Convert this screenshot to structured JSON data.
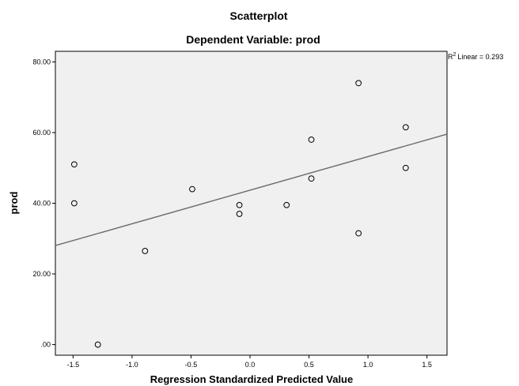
{
  "chart_data": {
    "type": "scatter",
    "title": "Scatterplot",
    "subtitle": "Dependent Variable: prod",
    "xlabel": "Regression Standardized Predicted Value",
    "ylabel": "prod",
    "xlim": [
      -1.65,
      1.67
    ],
    "ylim": [
      -3,
      83
    ],
    "x_ticks": [
      -1.5,
      -1.0,
      -0.5,
      0.0,
      0.5,
      1.0,
      1.5
    ],
    "x_tick_labels": [
      "-1.5",
      "-1.0",
      "-0.5",
      "0.0",
      "0.5",
      "1.0",
      "1.5"
    ],
    "y_ticks": [
      0,
      20,
      40,
      60,
      80
    ],
    "y_tick_labels": [
      ".00",
      "20.00",
      "40.00",
      "60.00",
      "80.00"
    ],
    "grid": false,
    "points": [
      {
        "x": -1.49,
        "y": 51
      },
      {
        "x": -1.49,
        "y": 40
      },
      {
        "x": -1.29,
        "y": 0
      },
      {
        "x": -0.89,
        "y": 26.5
      },
      {
        "x": -0.49,
        "y": 44
      },
      {
        "x": -0.09,
        "y": 39.5
      },
      {
        "x": -0.09,
        "y": 37
      },
      {
        "x": 0.31,
        "y": 39.5
      },
      {
        "x": 0.52,
        "y": 58
      },
      {
        "x": 0.52,
        "y": 47
      },
      {
        "x": 0.92,
        "y": 74
      },
      {
        "x": 0.92,
        "y": 31.5
      },
      {
        "x": 1.32,
        "y": 61.5
      },
      {
        "x": 1.32,
        "y": 50
      }
    ],
    "fit_line": {
      "intercept": 43.7,
      "slope": 9.5
    },
    "r2_label": "Linear = 0.293",
    "r2_prefix": "R",
    "r2_superscript": "2",
    "background_color": "#f0f0f0",
    "marker_color": "#000000",
    "line_color": "#6b6b6b"
  }
}
